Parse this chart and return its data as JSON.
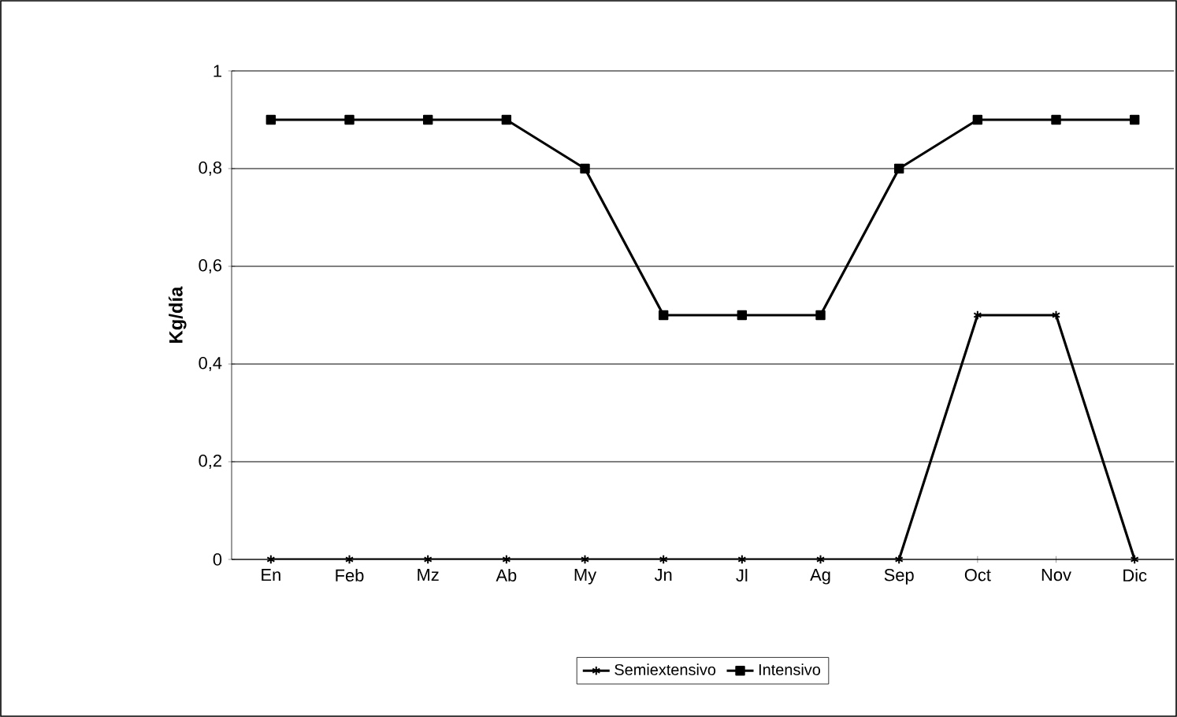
{
  "chart_data": {
    "type": "line",
    "ylabel": "**Kg/día**",
    "categories": [
      "En",
      "Feb",
      "Mz",
      "Ab",
      "My",
      "Jn",
      "Jl",
      "Ag",
      "Sep",
      "Oct",
      "Nov",
      "Dic"
    ],
    "series": [
      {
        "name": "Semiextensivo",
        "color": "#000000",
        "marker": "cross",
        "values": [
          0,
          0,
          0,
          0,
          0,
          0,
          0,
          0,
          0,
          0.5,
          0.5,
          0
        ]
      },
      {
        "name": "Intensivo",
        "color": "#000000",
        "marker": "square",
        "values": [
          0.9,
          0.9,
          0.9,
          0.9,
          0.8,
          0.5,
          0.5,
          0.5,
          0.8,
          0.9,
          0.9,
          0.9
        ]
      }
    ],
    "ylim": [
      0,
      1
    ],
    "yticks": [
      0,
      {
        "value": 0.2,
        "label": "0,2"
      },
      {
        "value": 0.4,
        "label": "0,4"
      },
      {
        "value": 0.6,
        "label": "0,6"
      },
      {
        "value": 0.8,
        "label": "0,8"
      },
      1
    ],
    "grid": "y",
    "legend": "bottom",
    "line_style": "solid"
  }
}
